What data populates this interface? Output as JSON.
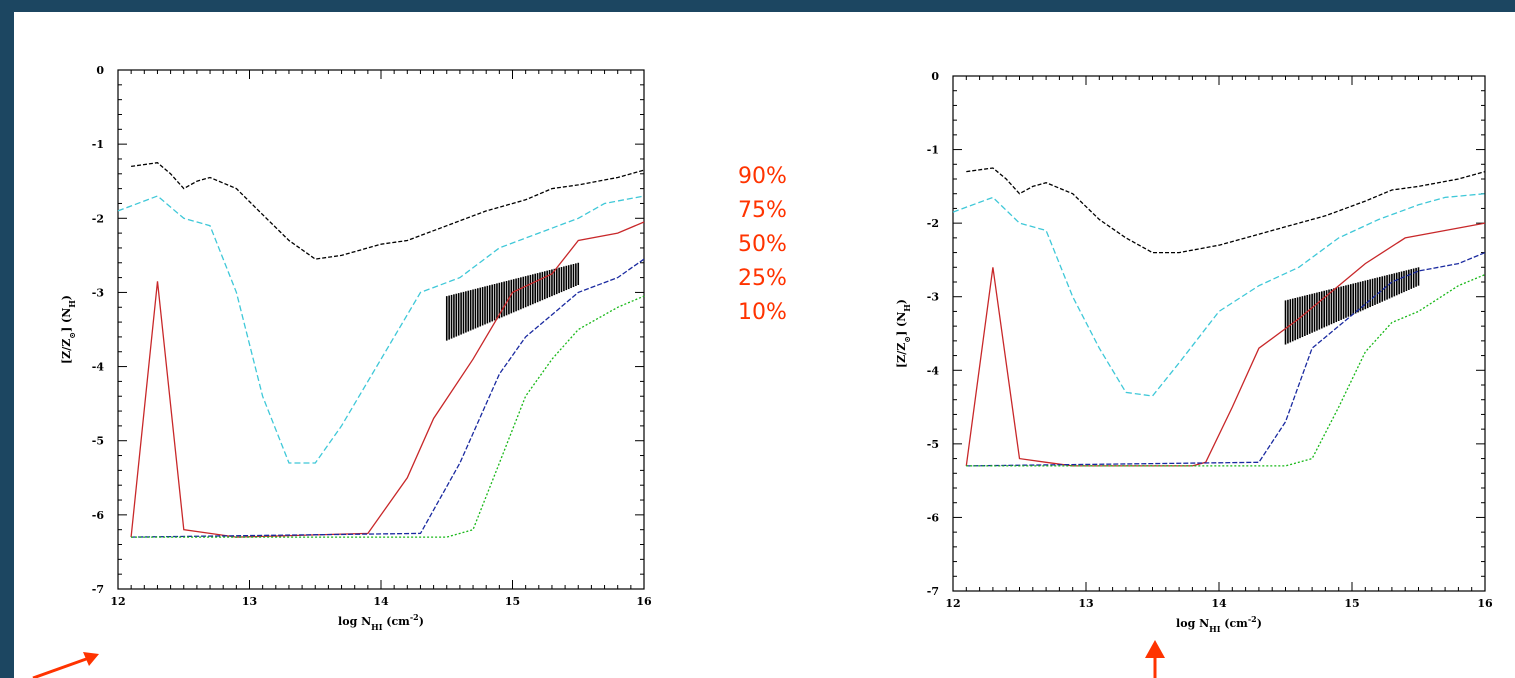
{
  "legend": {
    "items": [
      {
        "label": "90%",
        "color": "#000000"
      },
      {
        "label": "75%",
        "color": "#3fc8d8"
      },
      {
        "label": "50%",
        "color": "#c8282a"
      },
      {
        "label": "25%",
        "color": "#1a2aa0"
      },
      {
        "label": "10%",
        "color": "#18b818"
      }
    ],
    "text_color": "#ff3300"
  },
  "colors": {
    "background": "#1c4661",
    "panel": "#ffffff",
    "arrow": "#ff3300"
  },
  "chart_data": [
    {
      "type": "line",
      "xlabel": "log N",
      "xlabel_sub": "HI",
      "xlabel_unit": " (cm",
      "xlabel_sup": "-2",
      "xlabel_close": ")",
      "ylabel": "[Z/Z",
      "ylabel_sub1": "⊙",
      "ylabel_mid": "] (N",
      "ylabel_sub2": "H",
      "ylabel_close": ")",
      "xlim": [
        12,
        16
      ],
      "ylim": [
        -7,
        0
      ],
      "xticks": [
        {
          "v": 12,
          "label": "12"
        },
        {
          "v": 13,
          "label": "13"
        },
        {
          "v": 14,
          "label": "14"
        },
        {
          "v": 15,
          "label": "15"
        },
        {
          "v": 16,
          "label": "16"
        }
      ],
      "yticks": [
        {
          "v": 0,
          "label": "0"
        },
        {
          "v": -1,
          "label": "-1"
        },
        {
          "v": -2,
          "label": "-2"
        },
        {
          "v": -3,
          "label": "-3"
        },
        {
          "v": -4,
          "label": "-4"
        },
        {
          "v": -5,
          "label": "-5"
        },
        {
          "v": -6,
          "label": "-6"
        },
        {
          "v": -7,
          "label": "-7"
        }
      ],
      "series": [
        {
          "id": "p90",
          "color": "#000000",
          "dash": "4,2",
          "x": [
            12.1,
            12.3,
            12.4,
            12.5,
            12.6,
            12.7,
            12.9,
            13.1,
            13.3,
            13.5,
            13.7,
            14.0,
            14.2,
            14.5,
            14.8,
            15.1,
            15.3,
            15.5,
            15.8,
            16.0
          ],
          "y": [
            -1.3,
            -1.25,
            -1.4,
            -1.6,
            -1.5,
            -1.45,
            -1.6,
            -1.95,
            -2.3,
            -2.55,
            -2.5,
            -2.35,
            -2.3,
            -2.1,
            -1.9,
            -1.75,
            -1.6,
            -1.55,
            -1.45,
            -1.35
          ]
        },
        {
          "id": "p75",
          "color": "#3fc8d8",
          "dash": "6,3",
          "x": [
            12.0,
            12.3,
            12.5,
            12.7,
            12.9,
            13.1,
            13.3,
            13.5,
            13.7,
            14.0,
            14.3,
            14.6,
            14.9,
            15.2,
            15.5,
            15.7,
            16.0
          ],
          "y": [
            -1.9,
            -1.7,
            -2.0,
            -2.1,
            -3.0,
            -4.4,
            -5.3,
            -5.3,
            -4.8,
            -3.9,
            -3.0,
            -2.8,
            -2.4,
            -2.2,
            -2.0,
            -1.8,
            -1.7
          ]
        },
        {
          "id": "p50",
          "color": "#c8282a",
          "dash": "",
          "x": [
            12.1,
            12.3,
            12.5,
            12.7,
            12.9,
            13.9,
            14.0,
            14.2,
            14.4,
            14.7,
            15.0,
            15.3,
            15.5,
            15.8,
            16.0
          ],
          "y": [
            -6.3,
            -2.85,
            -6.2,
            -6.25,
            -6.3,
            -6.25,
            -6.0,
            -5.5,
            -4.7,
            -3.9,
            -3.0,
            -2.75,
            -2.3,
            -2.2,
            -2.05
          ]
        },
        {
          "id": "p25",
          "color": "#1a2aa0",
          "dash": "5,2",
          "x": [
            12.1,
            14.3,
            14.6,
            14.9,
            15.1,
            15.3,
            15.5,
            15.8,
            16.0
          ],
          "y": [
            -6.3,
            -6.25,
            -5.3,
            -4.1,
            -3.6,
            -3.3,
            -3.0,
            -2.8,
            -2.55
          ]
        },
        {
          "id": "p10",
          "color": "#18b818",
          "dash": "2,2",
          "x": [
            12.1,
            14.5,
            14.7,
            14.9,
            15.1,
            15.3,
            15.5,
            15.8,
            16.0
          ],
          "y": [
            -6.3,
            -6.3,
            -6.2,
            -5.3,
            -4.4,
            -3.9,
            -3.5,
            -3.2,
            -3.05
          ]
        }
      ],
      "observed_band": {
        "x": [
          14.5,
          15.5
        ],
        "y_low": [
          -3.65,
          -2.9
        ],
        "y_high": [
          -3.05,
          -2.6
        ],
        "color": "#000000"
      }
    },
    {
      "type": "line",
      "xlabel": "log N",
      "xlabel_sub": "HI",
      "xlabel_unit": " (cm",
      "xlabel_sup": "-2",
      "xlabel_close": ")",
      "ylabel": "[Z/Z",
      "ylabel_sub1": "⊙",
      "ylabel_mid": "] (N",
      "ylabel_sub2": "H",
      "ylabel_close": ")",
      "xlim": [
        12,
        16
      ],
      "ylim": [
        -7,
        0
      ],
      "xticks": [
        {
          "v": 12,
          "label": "12"
        },
        {
          "v": 13,
          "label": "13"
        },
        {
          "v": 14,
          "label": "14"
        },
        {
          "v": 15,
          "label": "15"
        },
        {
          "v": 16,
          "label": "16"
        }
      ],
      "yticks": [
        {
          "v": 0,
          "label": "0"
        },
        {
          "v": -1,
          "label": "-1"
        },
        {
          "v": -2,
          "label": "-2"
        },
        {
          "v": -3,
          "label": "-3"
        },
        {
          "v": -4,
          "label": "-4"
        },
        {
          "v": -5,
          "label": "-5"
        },
        {
          "v": -6,
          "label": "-6"
        },
        {
          "v": -7,
          "label": "-7"
        }
      ],
      "series": [
        {
          "id": "p90",
          "color": "#000000",
          "dash": "4,2",
          "x": [
            12.1,
            12.3,
            12.4,
            12.5,
            12.6,
            12.7,
            12.9,
            13.1,
            13.3,
            13.5,
            13.7,
            14.0,
            14.2,
            14.5,
            14.8,
            15.1,
            15.3,
            15.5,
            15.8,
            16.0
          ],
          "y": [
            -1.3,
            -1.25,
            -1.4,
            -1.6,
            -1.5,
            -1.45,
            -1.6,
            -1.95,
            -2.2,
            -2.4,
            -2.4,
            -2.3,
            -2.2,
            -2.05,
            -1.9,
            -1.7,
            -1.55,
            -1.5,
            -1.4,
            -1.3
          ]
        },
        {
          "id": "p75",
          "color": "#3fc8d8",
          "dash": "6,3",
          "x": [
            12.0,
            12.3,
            12.5,
            12.7,
            12.9,
            13.1,
            13.3,
            13.5,
            13.7,
            14.0,
            14.3,
            14.6,
            14.9,
            15.2,
            15.5,
            15.7,
            16.0
          ],
          "y": [
            -1.85,
            -1.65,
            -2.0,
            -2.1,
            -3.0,
            -3.7,
            -4.3,
            -4.35,
            -3.9,
            -3.2,
            -2.85,
            -2.6,
            -2.2,
            -1.95,
            -1.75,
            -1.65,
            -1.6
          ]
        },
        {
          "id": "p50",
          "color": "#c8282a",
          "dash": "",
          "x": [
            12.1,
            12.3,
            12.5,
            12.7,
            12.9,
            13.8,
            13.9,
            14.1,
            14.3,
            14.6,
            14.9,
            15.1,
            15.4,
            15.7,
            16.0
          ],
          "y": [
            -5.3,
            -2.6,
            -5.2,
            -5.25,
            -5.3,
            -5.3,
            -5.25,
            -4.5,
            -3.7,
            -3.3,
            -2.85,
            -2.55,
            -2.2,
            -2.1,
            -2.0
          ]
        },
        {
          "id": "p25",
          "color": "#1a2aa0",
          "dash": "5,2",
          "x": [
            12.1,
            14.3,
            14.5,
            14.7,
            14.9,
            15.1,
            15.3,
            15.5,
            15.8,
            16.0
          ],
          "y": [
            -5.3,
            -5.25,
            -4.7,
            -3.7,
            -3.4,
            -3.1,
            -2.8,
            -2.65,
            -2.55,
            -2.4
          ]
        },
        {
          "id": "p10",
          "color": "#18b818",
          "dash": "2,2",
          "x": [
            12.1,
            14.5,
            14.7,
            14.9,
            15.1,
            15.3,
            15.5,
            15.8,
            16.0
          ],
          "y": [
            -5.3,
            -5.3,
            -5.2,
            -4.5,
            -3.75,
            -3.35,
            -3.2,
            -2.85,
            -2.7
          ]
        }
      ],
      "observed_band": {
        "x": [
          14.5,
          15.5
        ],
        "y_low": [
          -3.65,
          -2.85
        ],
        "y_high": [
          -3.05,
          -2.6
        ],
        "color": "#000000"
      }
    }
  ]
}
